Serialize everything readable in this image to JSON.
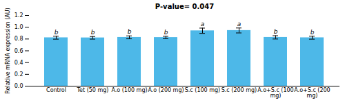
{
  "chart_data": {
    "type": "bar",
    "title": "P-value= 0.047",
    "categories": [
      "Control",
      "Tet (50 mg)",
      "A.o (100 mg)",
      "A.o (200 mg)",
      "S.c (100 mg)",
      "S.c (200 mg)",
      "A.o+S.c (100\nmg)",
      "A.o+S.c (200\nmg)"
    ],
    "values": [
      0.822,
      0.82,
      0.828,
      0.826,
      0.94,
      0.945,
      0.828,
      0.822
    ],
    "errors": [
      0.025,
      0.022,
      0.025,
      0.02,
      0.045,
      0.042,
      0.028,
      0.025
    ],
    "superscripts": [
      "b",
      "b",
      "b",
      "b",
      "a",
      "a",
      "b",
      "b"
    ],
    "color": "#4db8e8",
    "ylabel": "Relative mRNA expression (AU)",
    "ylim": [
      0,
      1.2
    ],
    "yticks": [
      {
        "value": 0,
        "label": "0.0"
      },
      0.2,
      0.4,
      0.6,
      0.8,
      {
        "value": 1.0,
        "label": "1.0"
      },
      1.2
    ],
    "grid": false
  }
}
